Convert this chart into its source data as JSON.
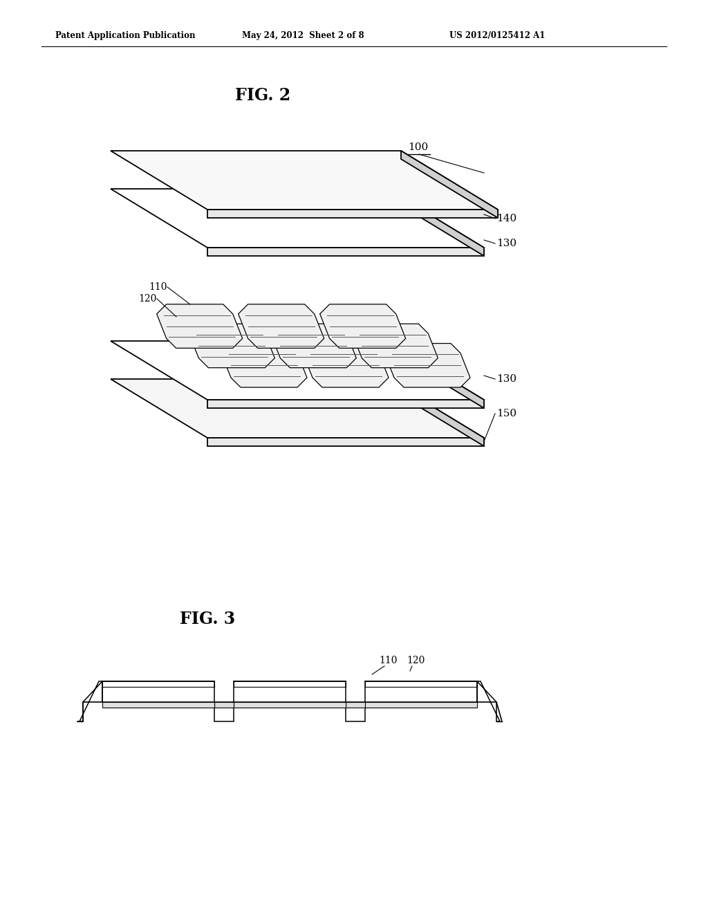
{
  "background_color": "#ffffff",
  "header_left": "Patent Application Publication",
  "header_center": "May 24, 2012  Sheet 2 of 8",
  "header_right": "US 2012/0125412 A1",
  "fig2_title": "FIG. 2",
  "fig3_title": "FIG. 3",
  "label_100": "100",
  "label_110": "110",
  "label_120": "120",
  "label_130a": "130",
  "label_130b": "130",
  "label_140": "140",
  "label_150": "150",
  "lw_main": 1.3,
  "lw_thin": 0.8,
  "cell_color": "#f0f0f0",
  "sheet_color": "#ffffff",
  "edge_color": "#000000"
}
